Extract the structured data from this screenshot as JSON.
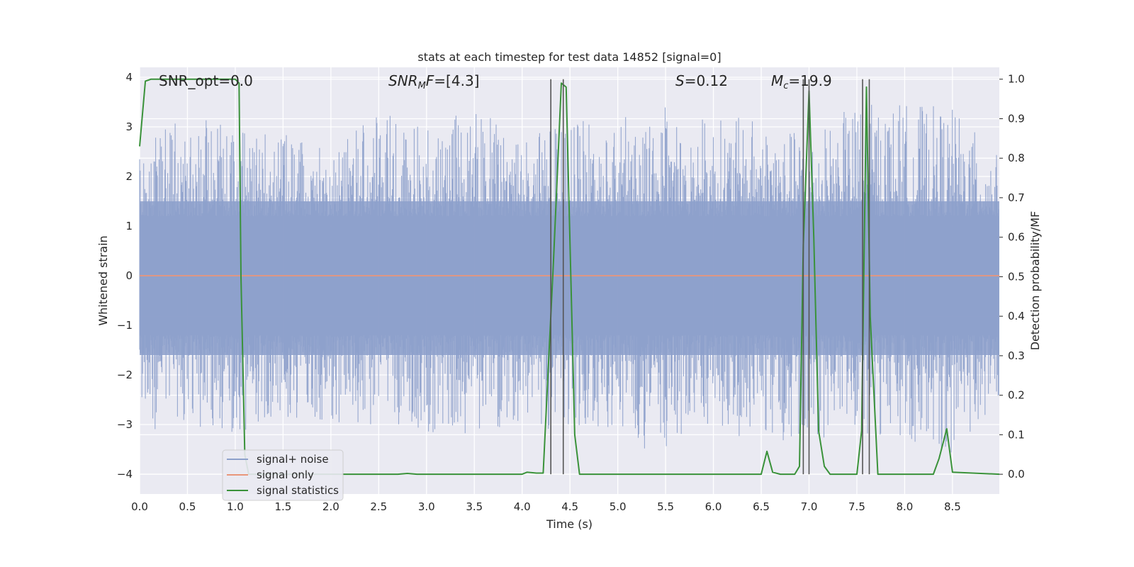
{
  "chart_data": {
    "type": "line",
    "title": "stats at each timestep for test data 14852 [signal=0]",
    "xlabel": "Time (s)",
    "ylabel_left": "Whitened strain",
    "ylabel_right": "Detection probability/MF",
    "xlim": [
      0.0,
      8.99
    ],
    "ylim_left": [
      -4.4,
      4.2
    ],
    "ylim_right": [
      -0.05,
      1.03
    ],
    "x_ticks": [
      "0.0",
      "0.5",
      "1.0",
      "1.5",
      "2.0",
      "2.5",
      "3.0",
      "3.5",
      "4.0",
      "4.5",
      "5.0",
      "5.5",
      "6.0",
      "6.5",
      "7.0",
      "7.5",
      "8.0",
      "8.5"
    ],
    "y_ticks_left": [
      "−4",
      "−3",
      "−2",
      "−1",
      "0",
      "1",
      "2",
      "3",
      "4"
    ],
    "y_ticks_right": [
      "0.0",
      "0.1",
      "0.2",
      "0.3",
      "0.4",
      "0.5",
      "0.6",
      "0.7",
      "0.8",
      "0.9",
      "1.0"
    ],
    "grid": true,
    "legend_position": "lower-left",
    "annotations": [
      {
        "text": "SNR_opt=0.0",
        "italic": false
      },
      {
        "text": "SNR_MF=[4.3]",
        "italic": true
      },
      {
        "text": "S=0.12",
        "italic": true
      },
      {
        "text": "M_c=19.9",
        "italic": true
      }
    ],
    "series": [
      {
        "name": "signal+ noise",
        "color": "#8da0cb",
        "axis": "left",
        "description_values": "dense noise, approx range -3.7 to 3.5",
        "envelope_x": [
          0.0,
          0.5,
          1.0,
          1.5,
          2.0,
          2.5,
          3.0,
          3.5,
          4.0,
          4.5,
          5.0,
          5.5,
          6.0,
          6.5,
          7.0,
          7.5,
          8.0,
          8.5,
          8.99
        ],
        "envelope_upper": [
          2.6,
          3.3,
          3.0,
          2.9,
          2.7,
          3.3,
          3.0,
          3.4,
          2.8,
          3.1,
          3.2,
          3.4,
          3.2,
          3.2,
          2.8,
          3.5,
          3.5,
          3.4,
          2.4
        ],
        "envelope_lower": [
          -3.2,
          -3.0,
          -3.2,
          -2.9,
          -3.0,
          -3.0,
          -3.2,
          -3.3,
          -3.0,
          -3.2,
          -3.4,
          -3.6,
          -3.1,
          -3.4,
          -3.3,
          -3.2,
          -3.3,
          -3.6,
          -2.5
        ]
      },
      {
        "name": "signal only",
        "color": "#e9967a",
        "axis": "left",
        "x": [
          0.0,
          8.99
        ],
        "y": [
          0.0,
          0.0
        ]
      },
      {
        "name": "signal statistics",
        "color": "#3a923a",
        "axis": "right",
        "x": [
          0.0,
          0.06,
          0.12,
          0.5,
          1.0,
          1.04,
          1.06,
          1.1,
          1.14,
          1.2,
          2.0,
          2.7,
          2.8,
          2.9,
          4.0,
          4.05,
          4.15,
          4.22,
          4.33,
          4.41,
          4.46,
          4.55,
          4.6,
          6.5,
          6.56,
          6.62,
          6.7,
          6.85,
          6.9,
          6.94,
          7.0,
          7.05,
          7.1,
          7.16,
          7.22,
          7.5,
          7.55,
          7.6,
          7.64,
          7.72,
          7.78,
          8.3,
          8.36,
          8.44,
          8.5,
          8.99
        ],
        "y": [
          0.83,
          0.995,
          1.0,
          1.0,
          1.0,
          0.99,
          0.5,
          0.05,
          0.0,
          0.0,
          0.0,
          0.0,
          0.002,
          0.0,
          0.0,
          0.005,
          0.003,
          0.003,
          0.55,
          0.99,
          0.98,
          0.1,
          0.0,
          0.0,
          0.058,
          0.005,
          0.0,
          0.0,
          0.02,
          0.58,
          0.97,
          0.6,
          0.11,
          0.02,
          0.0,
          0.0,
          0.11,
          0.98,
          0.4,
          0.0,
          0.0,
          0.0,
          0.04,
          0.115,
          0.005,
          0.0
        ]
      }
    ],
    "vertical_markers_x": [
      4.3,
      4.43,
      6.94,
      7.0,
      7.56,
      7.63
    ]
  }
}
